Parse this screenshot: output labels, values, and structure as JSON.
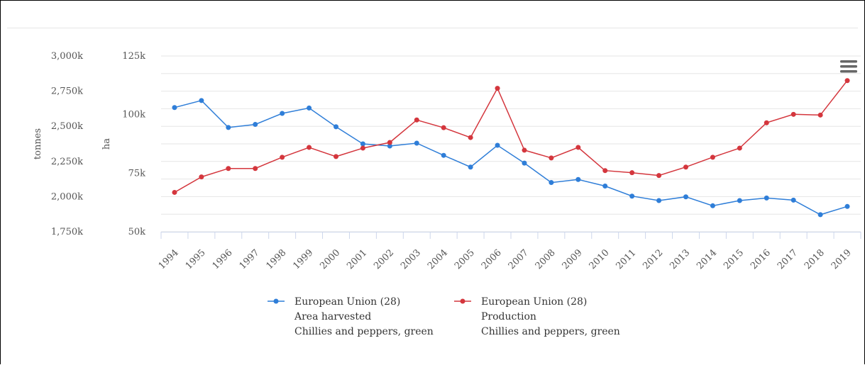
{
  "chart_data": {
    "type": "line",
    "x": [
      "1994",
      "1995",
      "1996",
      "1997",
      "1998",
      "1999",
      "2000",
      "2001",
      "2002",
      "2003",
      "2004",
      "2005",
      "2006",
      "2007",
      "2008",
      "2009",
      "2010",
      "2011",
      "2012",
      "2013",
      "2014",
      "2015",
      "2016",
      "2017",
      "2018",
      "2019"
    ],
    "yaxes": [
      {
        "id": "tonnes",
        "label": "tonnes",
        "ticks": [
          "3,000k",
          "2,750k",
          "2,500k",
          "2,250k",
          "2,000k",
          "1,750k"
        ],
        "range": [
          1750000,
          3000000
        ]
      },
      {
        "id": "ha",
        "label": "ha",
        "ticks": [
          "125k",
          "100k",
          "75k",
          "50k"
        ],
        "range": [
          50000,
          125000
        ]
      }
    ],
    "series": [
      {
        "name": "European Union (28)\nArea harvested\nChillies and peppers, green",
        "legend_lines": [
          "European Union (28)",
          "Area harvested",
          "Chillies and peppers, green"
        ],
        "axis": "ha",
        "color": "#2f7ed8",
        "values": [
          103000,
          106000,
          94500,
          95800,
          100500,
          102800,
          94800,
          87500,
          86600,
          87800,
          82600,
          77600,
          86900,
          79300,
          71000,
          72300,
          69500,
          65200,
          63300,
          64900,
          61100,
          63300,
          64400,
          63500,
          57300,
          60800
        ]
      },
      {
        "name": "European Union (28)\nProduction\nChillies and peppers, green",
        "legend_lines": [
          "European Union (28)",
          "Production",
          "Chillies and peppers, green"
        ],
        "axis": "tonnes",
        "color": "#d4363d",
        "values": [
          2030000,
          2140000,
          2200000,
          2200000,
          2280000,
          2350000,
          2285000,
          2345000,
          2385000,
          2545000,
          2490000,
          2420000,
          2770000,
          2330000,
          2275000,
          2350000,
          2185000,
          2170000,
          2150000,
          2210000,
          2280000,
          2345000,
          2525000,
          2585000,
          2580000,
          2825000
        ]
      }
    ],
    "grid": true,
    "legend_position": "bottom",
    "menu_icon": "hamburger-menu-icon"
  }
}
